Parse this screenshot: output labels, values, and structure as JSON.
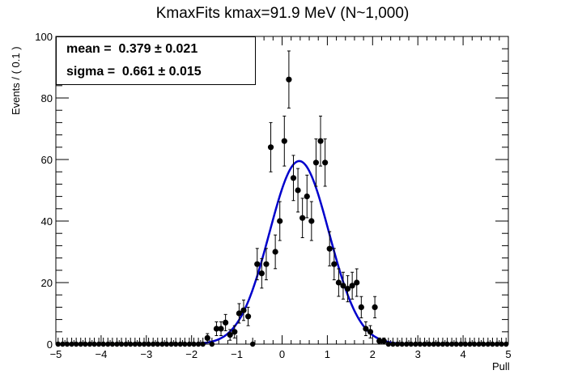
{
  "chart_data": {
    "type": "scatter",
    "title": "KmaxFits kmax=91.9 MeV (N~1,000)",
    "xlabel": "Pull",
    "ylabel": "Events / ( 0.1 )",
    "xlim": [
      -5,
      5
    ],
    "ylim": [
      0,
      100
    ],
    "x_ticks": [
      -5,
      -4,
      -3,
      -2,
      -1,
      0,
      1,
      2,
      3,
      4,
      5
    ],
    "y_ticks": [
      0,
      20,
      40,
      60,
      80,
      100
    ],
    "stats": {
      "mean_label": "mean =  0.379 ± 0.021",
      "sigma_label": "sigma =  0.661 ± 0.015"
    },
    "fit": {
      "mean": 0.379,
      "sigma": 0.661,
      "amplitude": 59.5,
      "color": "#0000cc"
    },
    "points_color": "#000000",
    "points": [
      {
        "x": -1.65,
        "y": 2
      },
      {
        "x": -1.45,
        "y": 5
      },
      {
        "x": -1.35,
        "y": 5
      },
      {
        "x": -1.25,
        "y": 7
      },
      {
        "x": -1.15,
        "y": 3
      },
      {
        "x": -1.05,
        "y": 4
      },
      {
        "x": -0.95,
        "y": 10
      },
      {
        "x": -0.85,
        "y": 11
      },
      {
        "x": -0.75,
        "y": 9
      },
      {
        "x": -0.55,
        "y": 26
      },
      {
        "x": -0.45,
        "y": 23
      },
      {
        "x": -0.35,
        "y": 26
      },
      {
        "x": -0.25,
        "y": 64
      },
      {
        "x": -0.15,
        "y": 30
      },
      {
        "x": -0.05,
        "y": 40
      },
      {
        "x": 0.05,
        "y": 66
      },
      {
        "x": 0.15,
        "y": 86
      },
      {
        "x": 0.25,
        "y": 54
      },
      {
        "x": 0.35,
        "y": 50
      },
      {
        "x": 0.45,
        "y": 41
      },
      {
        "x": 0.55,
        "y": 48
      },
      {
        "x": 0.65,
        "y": 40
      },
      {
        "x": 0.75,
        "y": 59
      },
      {
        "x": 0.85,
        "y": 66
      },
      {
        "x": 0.95,
        "y": 59
      },
      {
        "x": 1.05,
        "y": 31
      },
      {
        "x": 1.15,
        "y": 26
      },
      {
        "x": 1.25,
        "y": 20
      },
      {
        "x": 1.35,
        "y": 19
      },
      {
        "x": 1.45,
        "y": 18
      },
      {
        "x": 1.55,
        "y": 19
      },
      {
        "x": 1.65,
        "y": 20
      },
      {
        "x": 1.75,
        "y": 12
      },
      {
        "x": 1.85,
        "y": 5
      },
      {
        "x": 1.95,
        "y": 4
      },
      {
        "x": 2.05,
        "y": 12
      },
      {
        "x": 2.15,
        "y": 1
      },
      {
        "x": 2.25,
        "y": 1
      }
    ]
  }
}
